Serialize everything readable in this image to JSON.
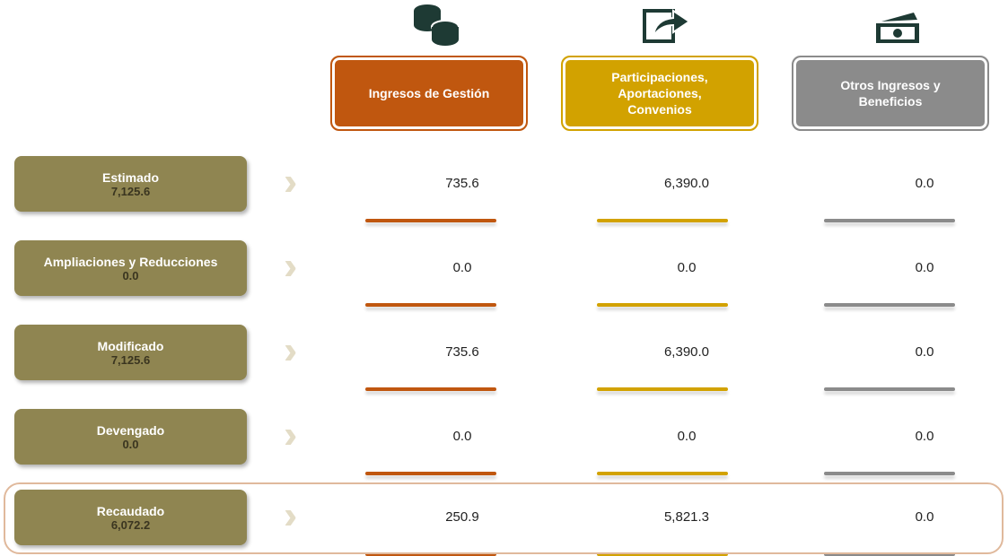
{
  "columns": [
    {
      "label": "Ingresos de Gestión",
      "color": "#c0570f"
    },
    {
      "label": "Participaciones, Aportaciones, Convenios",
      "color": "#d2a200"
    },
    {
      "label": "Otros Ingresos y Beneficios",
      "color": "#8b8b8b"
    }
  ],
  "rows": [
    {
      "label": "Estimado",
      "total": "7,125.6",
      "values": [
        "735.6",
        "6,390.0",
        "0.0"
      ]
    },
    {
      "label": "Ampliaciones y Reducciones",
      "total": "0.0",
      "values": [
        "0.0",
        "0.0",
        "0.0"
      ]
    },
    {
      "label": "Modificado",
      "total": "7,125.6",
      "values": [
        "735.6",
        "6,390.0",
        "0.0"
      ]
    },
    {
      "label": "Devengado",
      "total": "0.0",
      "values": [
        "0.0",
        "0.0",
        "0.0"
      ]
    },
    {
      "label": "Recaudado",
      "total": "6,072.2",
      "values": [
        "250.9",
        "5,821.3",
        "0.0"
      ]
    }
  ]
}
